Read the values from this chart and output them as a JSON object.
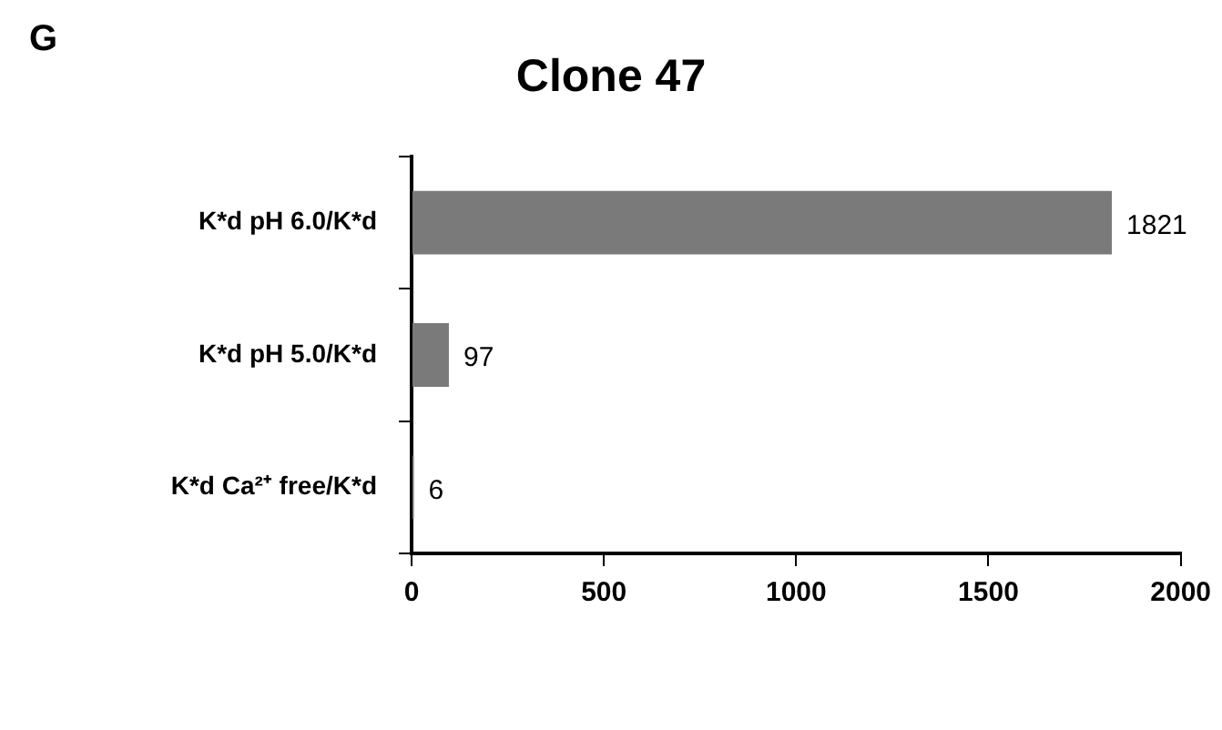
{
  "chart_data": {
    "type": "bar",
    "orientation": "horizontal",
    "title": "Clone 47",
    "annotations": [
      "G"
    ],
    "categories": [
      "K*d pH 6.0/K*d",
      "K*d pH 5.0/K*d",
      "K*d Ca²⁺ free/K*d"
    ],
    "values": [
      1821,
      97,
      6
    ],
    "color": "#7a7a7a",
    "xlim": [
      0,
      2000
    ],
    "xticks": [
      0,
      500,
      1000,
      1500,
      2000
    ],
    "data_labels": true,
    "grid": false,
    "legend": false
  }
}
